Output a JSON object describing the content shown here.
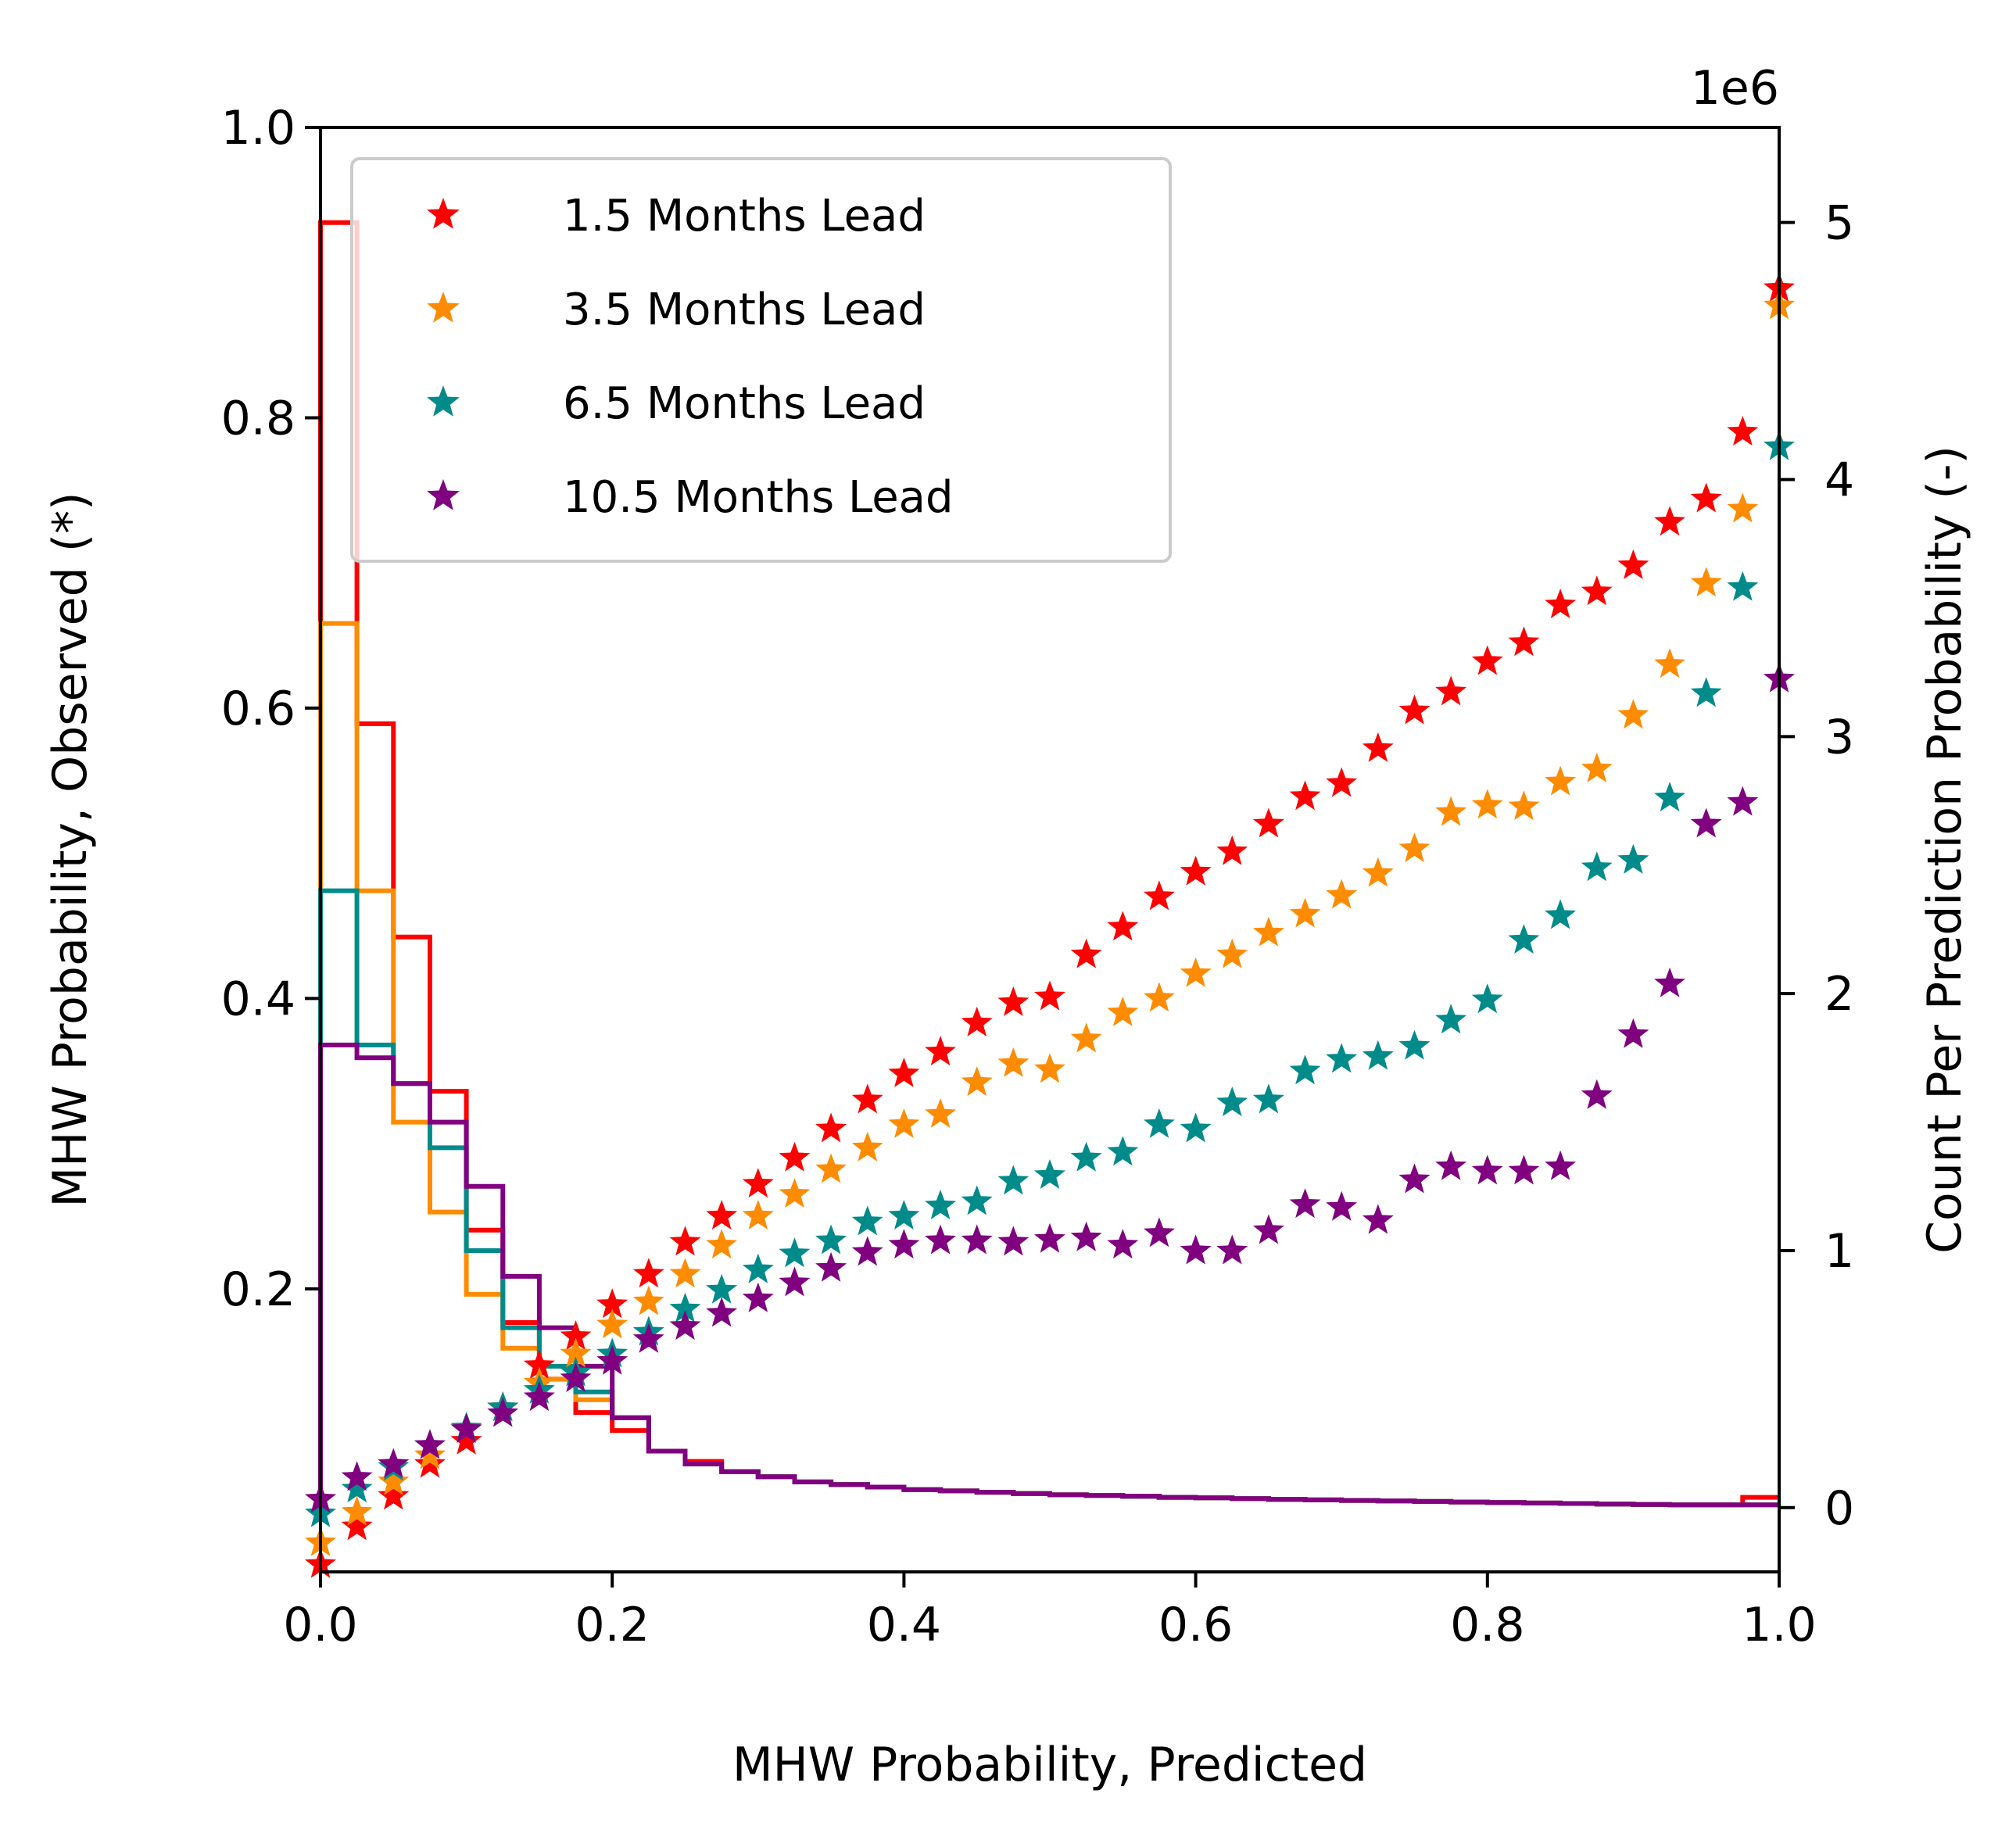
{
  "chart_data": {
    "type": "scatter",
    "xlabel": "MHW Probability, Predicted",
    "ylabel": "MHW Probability, Observed (*)",
    "ylabel_right": "Count Per Prediction Probability (-)",
    "right_axis_offset_label": "1e6",
    "xlim": [
      0.0,
      1.0
    ],
    "ylim": [
      0.005,
      1.0
    ],
    "ylim_right": [
      -0.25,
      5.37
    ],
    "xticks": [
      "0.0",
      "0.2",
      "0.4",
      "0.6",
      "0.8",
      "1.0"
    ],
    "yticks": [
      "0.2",
      "0.4",
      "0.6",
      "0.8",
      "1.0"
    ],
    "yticks_right": [
      "0",
      "1",
      "2",
      "3",
      "4",
      "5"
    ],
    "grid": false,
    "legend_position": "upper-left",
    "x": [
      0.0,
      0.025,
      0.05,
      0.075,
      0.1,
      0.125,
      0.15,
      0.175,
      0.2,
      0.225,
      0.25,
      0.275,
      0.3,
      0.325,
      0.35,
      0.375,
      0.4,
      0.425,
      0.45,
      0.475,
      0.5,
      0.525,
      0.55,
      0.575,
      0.6,
      0.625,
      0.65,
      0.675,
      0.7,
      0.725,
      0.75,
      0.775,
      0.8,
      0.825,
      0.85,
      0.875,
      0.9,
      0.925,
      0.95,
      0.975,
      1.0
    ],
    "series": [
      {
        "name": "1.5 Months Lead",
        "color": "#ff0000",
        "marker": "star",
        "observed": [
          0.01,
          0.036,
          0.057,
          0.079,
          0.095,
          0.118,
          0.147,
          0.167,
          0.189,
          0.21,
          0.232,
          0.25,
          0.272,
          0.29,
          0.31,
          0.33,
          0.348,
          0.363,
          0.383,
          0.397,
          0.401,
          0.43,
          0.449,
          0.47,
          0.487,
          0.501,
          0.52,
          0.539,
          0.548,
          0.572,
          0.598,
          0.611,
          0.632,
          0.645,
          0.671,
          0.68,
          0.698,
          0.728,
          0.744,
          0.79,
          0.889
        ],
        "counts": [
          5.0,
          3.05,
          2.22,
          1.62,
          1.08,
          0.72,
          0.5,
          0.37,
          0.3,
          0.22,
          0.18,
          0.14,
          0.12,
          0.1,
          0.09,
          0.08,
          0.07,
          0.065,
          0.06,
          0.055,
          0.05,
          0.047,
          0.044,
          0.04,
          0.038,
          0.035,
          0.032,
          0.03,
          0.028,
          0.026,
          0.024,
          0.022,
          0.02,
          0.018,
          0.016,
          0.014,
          0.012,
          0.011,
          0.011,
          0.04
        ]
      },
      {
        "name": "3.5 Months Lead",
        "color": "#ff8c00",
        "marker": "star",
        "observed": [
          0.025,
          0.046,
          0.067,
          0.085,
          0.103,
          0.118,
          0.135,
          0.155,
          0.175,
          0.191,
          0.21,
          0.23,
          0.25,
          0.265,
          0.282,
          0.297,
          0.313,
          0.32,
          0.342,
          0.355,
          0.351,
          0.372,
          0.39,
          0.4,
          0.417,
          0.43,
          0.445,
          0.458,
          0.471,
          0.486,
          0.503,
          0.528,
          0.533,
          0.532,
          0.549,
          0.558,
          0.595,
          0.63,
          0.686,
          0.737,
          0.877
        ],
        "counts": [
          3.44,
          2.4,
          1.5,
          1.15,
          0.83,
          0.62,
          0.5,
          0.42,
          0.35,
          0.22,
          0.17,
          0.14,
          0.12,
          0.1,
          0.09,
          0.08,
          0.07,
          0.065,
          0.06,
          0.055,
          0.05,
          0.047,
          0.044,
          0.04,
          0.038,
          0.035,
          0.032,
          0.03,
          0.028,
          0.026,
          0.024,
          0.022,
          0.02,
          0.018,
          0.016,
          0.014,
          0.012,
          0.011,
          0.011,
          0.011
        ]
      },
      {
        "name": "6.5 Months Lead",
        "color": "#008b8b",
        "marker": "star",
        "observed": [
          0.045,
          0.062,
          0.077,
          0.092,
          0.104,
          0.118,
          0.13,
          0.142,
          0.155,
          0.17,
          0.186,
          0.199,
          0.213,
          0.224,
          0.233,
          0.246,
          0.25,
          0.257,
          0.26,
          0.274,
          0.278,
          0.29,
          0.294,
          0.313,
          0.31,
          0.328,
          0.33,
          0.35,
          0.358,
          0.36,
          0.367,
          0.385,
          0.399,
          0.44,
          0.457,
          0.49,
          0.495,
          0.538,
          0.61,
          0.683,
          0.78
        ],
        "counts": [
          2.4,
          1.8,
          1.65,
          1.4,
          1.0,
          0.7,
          0.55,
          0.45,
          0.35,
          0.22,
          0.17,
          0.14,
          0.12,
          0.1,
          0.09,
          0.08,
          0.07,
          0.065,
          0.06,
          0.055,
          0.05,
          0.047,
          0.044,
          0.04,
          0.038,
          0.035,
          0.032,
          0.03,
          0.028,
          0.026,
          0.024,
          0.022,
          0.02,
          0.018,
          0.016,
          0.014,
          0.012,
          0.011,
          0.011,
          0.011
        ]
      },
      {
        "name": "10.5 Months Lead",
        "color": "#800080",
        "marker": "star",
        "observed": [
          0.055,
          0.07,
          0.079,
          0.092,
          0.103,
          0.114,
          0.125,
          0.138,
          0.15,
          0.165,
          0.174,
          0.183,
          0.193,
          0.204,
          0.214,
          0.225,
          0.23,
          0.233,
          0.233,
          0.232,
          0.234,
          0.235,
          0.23,
          0.238,
          0.226,
          0.226,
          0.24,
          0.258,
          0.256,
          0.247,
          0.275,
          0.284,
          0.281,
          0.281,
          0.284,
          0.333,
          0.375,
          0.41,
          0.52,
          0.535,
          0.62
        ],
        "counts": [
          1.8,
          1.75,
          1.65,
          1.5,
          1.25,
          0.9,
          0.7,
          0.55,
          0.35,
          0.22,
          0.17,
          0.14,
          0.12,
          0.1,
          0.09,
          0.08,
          0.07,
          0.065,
          0.06,
          0.055,
          0.05,
          0.047,
          0.044,
          0.04,
          0.038,
          0.035,
          0.032,
          0.03,
          0.028,
          0.026,
          0.024,
          0.022,
          0.02,
          0.018,
          0.016,
          0.014,
          0.012,
          0.011,
          0.011,
          0.011
        ]
      }
    ]
  }
}
